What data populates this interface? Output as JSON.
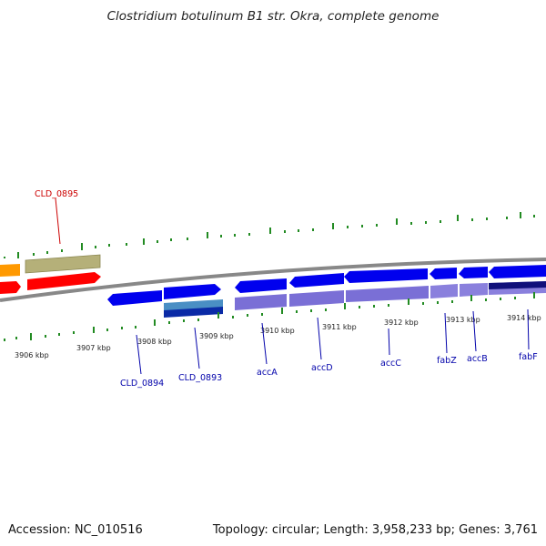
{
  "title": "Clostridium botulinum B1 str. Okra, complete genome",
  "footer": {
    "accession": "Accession: NC_010516",
    "topology": "Topology: circular; Length: 3,958,233 bp; Genes: 3,761"
  },
  "colors": {
    "backbone": "#7f7f7f",
    "forward_cds": "#0000ee",
    "forward_gene": "#7a6fd6",
    "selected_cds": "#ff0000",
    "selected_gene": "#b5b079",
    "pseudo_orange": "#ff9900",
    "tick_green": "#228b22",
    "label_blue": "#0000aa",
    "label_red": "#cc0000"
  },
  "axis_labels": [
    "3906 kbp",
    "3907 kbp",
    "3908 kbp",
    "3909 kbp",
    "3910 kbp",
    "3911 kbp",
    "3912 kbp",
    "3913 kbp",
    "3914 kbp"
  ],
  "gene_labels": [
    {
      "name": "CLD_0895",
      "color": "red"
    },
    {
      "name": "CLD_0894",
      "color": "blue"
    },
    {
      "name": "CLD_0893",
      "color": "blue"
    },
    {
      "name": "accA",
      "color": "blue"
    },
    {
      "name": "accD",
      "color": "blue"
    },
    {
      "name": "accC",
      "color": "blue"
    },
    {
      "name": "fabZ",
      "color": "blue"
    },
    {
      "name": "accB",
      "color": "blue"
    },
    {
      "name": "fabF",
      "color": "blue"
    }
  ]
}
